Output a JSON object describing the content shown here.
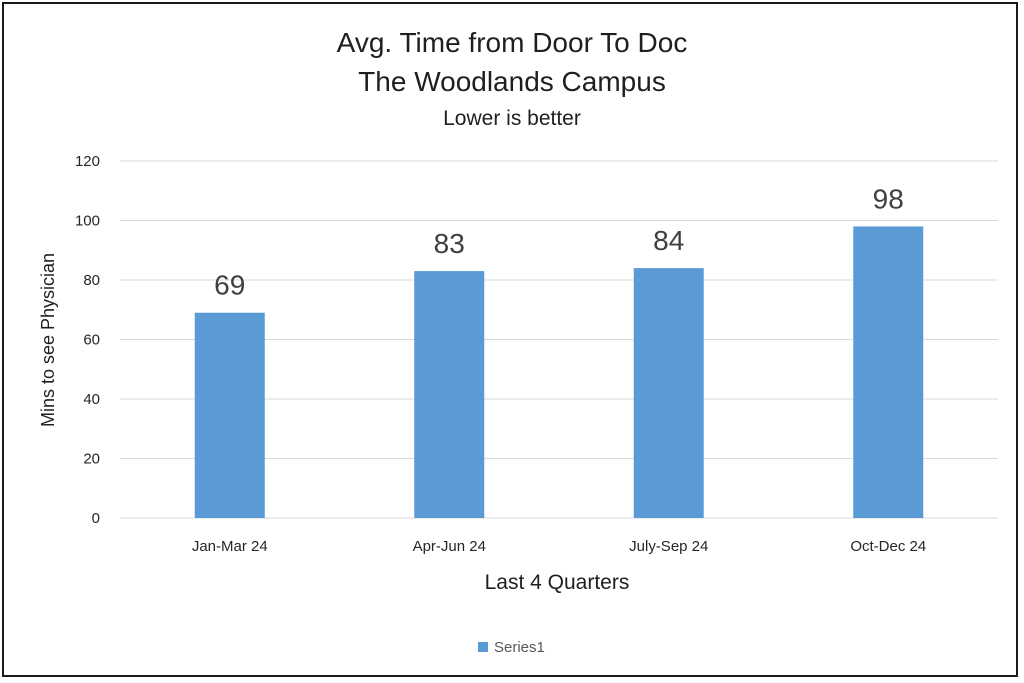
{
  "chart_data": {
    "type": "bar",
    "title": "Avg. Time from Door To Doc",
    "title_line2": "The Woodlands Campus",
    "subtitle": "Lower is better",
    "categories": [
      "Jan-Mar 24",
      "Apr-Jun 24",
      "July-Sep 24",
      "Oct-Dec 24"
    ],
    "series": [
      {
        "name": "Series1",
        "values": [
          69,
          83,
          84,
          98
        ],
        "color": "#5b9bd5"
      }
    ],
    "xlabel": "Last 4 Quarters",
    "ylabel": "Mins to see Physician",
    "ylim": [
      0,
      120
    ],
    "yticks": [
      "0",
      "20",
      "40",
      "60",
      "80",
      "100",
      "120"
    ],
    "data_labels": [
      "69",
      "83",
      "84",
      "98"
    ],
    "grid": true,
    "legend_position": "bottom",
    "gridline_color": "#d9d9d9"
  }
}
